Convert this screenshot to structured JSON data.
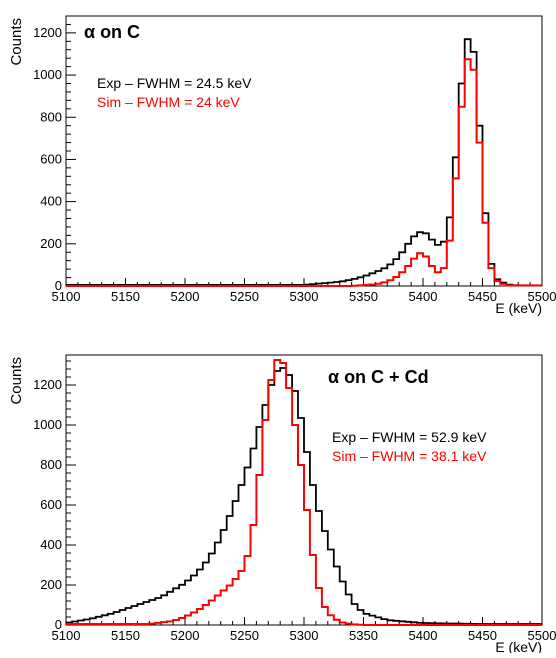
{
  "chart_data": [
    {
      "type": "line",
      "title": "α on C",
      "xlabel": "E (keV)",
      "ylabel": "Counts",
      "xlim": [
        5100,
        5500
      ],
      "ylim": [
        0,
        1280
      ],
      "x_ticks": [
        "5100",
        "5150",
        "5200",
        "5250",
        "5300",
        "5350",
        "5400",
        "5450",
        "5500"
      ],
      "y_ticks": [
        "0",
        "200",
        "400",
        "600",
        "800",
        "1000",
        "1200"
      ],
      "grid": false,
      "legend": "top-left",
      "series": [
        {
          "name": "Exp – FWHM = 24.5 keV",
          "color": "#000000",
          "x": [
            5300,
            5310,
            5320,
            5330,
            5340,
            5350,
            5360,
            5370,
            5380,
            5390,
            5395,
            5400,
            5405,
            5410,
            5415,
            5420,
            5425,
            5430,
            5435,
            5440,
            5445,
            5450,
            5455,
            5460,
            5470,
            5480
          ],
          "y": [
            5,
            10,
            15,
            20,
            30,
            45,
            65,
            90,
            140,
            220,
            250,
            260,
            240,
            200,
            190,
            230,
            420,
            800,
            1120,
            1220,
            1000,
            520,
            170,
            40,
            8,
            2
          ]
        },
        {
          "name": "Sim – FWHM = 24 keV",
          "color": "#ff0000",
          "x": [
            5340,
            5360,
            5370,
            5380,
            5390,
            5395,
            5400,
            5405,
            5410,
            5415,
            5420,
            5425,
            5430,
            5435,
            5440,
            5445,
            5450,
            5455,
            5460,
            5470
          ],
          "y": [
            0,
            8,
            20,
            50,
            110,
            150,
            160,
            120,
            70,
            60,
            110,
            320,
            700,
            1000,
            1150,
            900,
            460,
            140,
            30,
            3
          ]
        }
      ]
    },
    {
      "type": "line",
      "title": "α on C + Cd",
      "xlabel": "E (keV)",
      "ylabel": "Counts",
      "xlim": [
        5100,
        5500
      ],
      "ylim": [
        0,
        1350
      ],
      "x_ticks": [
        "5100",
        "5150",
        "5200",
        "5250",
        "5300",
        "5350",
        "5400",
        "5450",
        "5500"
      ],
      "y_ticks": [
        "0",
        "200",
        "400",
        "600",
        "800",
        "1000",
        "1200"
      ],
      "grid": false,
      "legend": "top-right",
      "series": [
        {
          "name": "Exp – FWHM = 52.9 keV",
          "color": "#000000",
          "x": [
            5100,
            5120,
            5140,
            5160,
            5180,
            5200,
            5210,
            5220,
            5230,
            5240,
            5250,
            5260,
            5265,
            5270,
            5275,
            5280,
            5285,
            5290,
            5295,
            5300,
            5305,
            5310,
            5320,
            5330,
            5340,
            5350,
            5370,
            5400,
            5450
          ],
          "y": [
            10,
            30,
            60,
            100,
            140,
            210,
            260,
            330,
            440,
            580,
            740,
            930,
            1050,
            1150,
            1250,
            1290,
            1280,
            1220,
            1120,
            950,
            780,
            620,
            420,
            250,
            120,
            60,
            25,
            10,
            5
          ]
        },
        {
          "name": "Sim – FWHM = 38.1 keV",
          "color": "#ff0000",
          "x": [
            5170,
            5190,
            5200,
            5210,
            5220,
            5230,
            5240,
            5250,
            5255,
            5260,
            5265,
            5270,
            5275,
            5280,
            5285,
            5290,
            5295,
            5300,
            5305,
            5310,
            5315,
            5320,
            5330,
            5340,
            5350
          ],
          "y": [
            5,
            20,
            40,
            70,
            110,
            160,
            210,
            290,
            400,
            600,
            900,
            1150,
            1300,
            1350,
            1270,
            1100,
            900,
            700,
            450,
            250,
            120,
            60,
            15,
            4,
            0
          ]
        }
      ]
    }
  ]
}
